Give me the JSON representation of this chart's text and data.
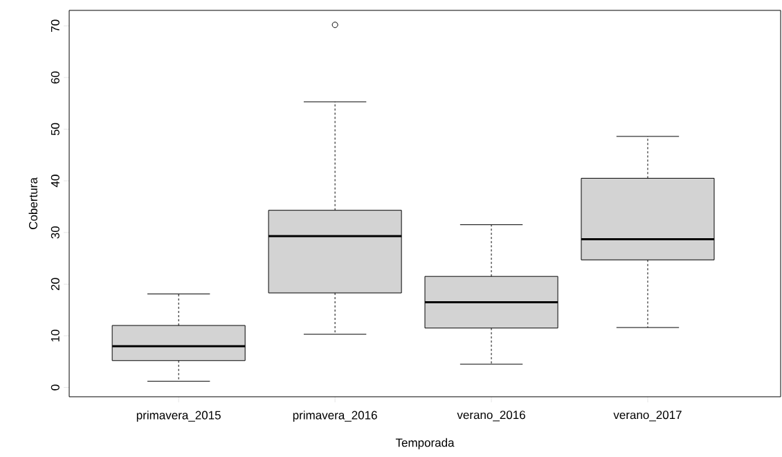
{
  "chart_data": {
    "type": "box",
    "xlabel": "Temporada",
    "ylabel": "Cobertura",
    "categories": [
      "primavera_2015",
      "primavera_2016",
      "verano_2016",
      "verano_2017"
    ],
    "color": "#d3d3d3",
    "boxes": [
      {
        "low": 1.2,
        "q1": 5.2,
        "median": 8.0,
        "q3": 12.0,
        "high": 18.1
      },
      {
        "low": 10.3,
        "q1": 18.3,
        "median": 29.3,
        "q3": 34.3,
        "high": 55.3,
        "outliers": [
          70.2
        ]
      },
      {
        "low": 4.5,
        "q1": 11.5,
        "median": 16.5,
        "q3": 21.5,
        "high": 31.5
      },
      {
        "low": 11.6,
        "q1": 24.7,
        "median": 28.7,
        "q3": 40.5,
        "high": 48.6
      }
    ],
    "ylim": [
      -1.8,
      73.0
    ],
    "yticks": [
      0,
      10,
      20,
      30,
      40,
      50,
      60,
      70
    ]
  }
}
